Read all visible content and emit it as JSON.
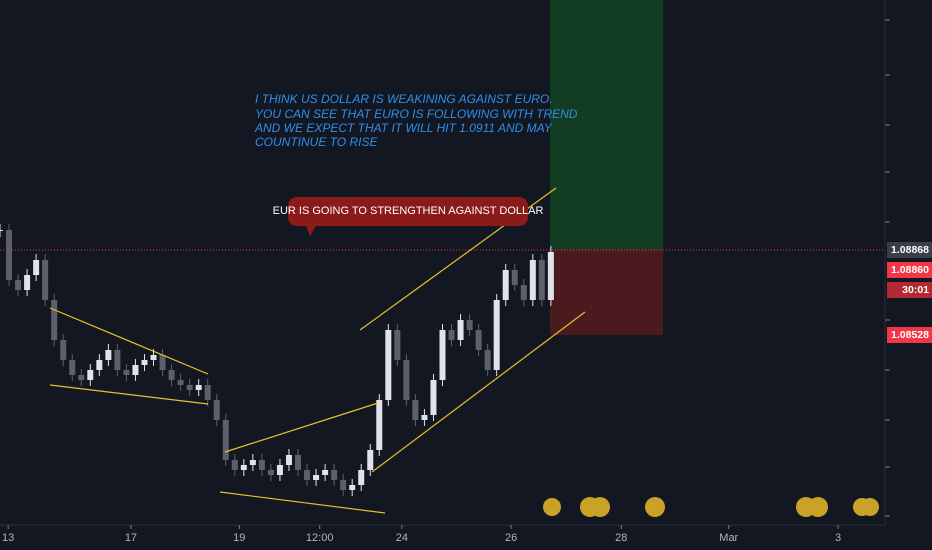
{
  "chart_data": {
    "type": "candlestick",
    "annotation": [
      "I THINK US DOLLAR IS WEAKINING AGAINST EURO.",
      "YOU CAN SEE THAT EURO IS FOLLOWING WITH TREND",
      "AND WE EXPECT THAT IT WILL HIT 1.0911 AND MAY",
      "COUNTINUE TO RISE"
    ],
    "callout": "EUR IS GOING TO STRENGTHEN AGAINST DOLLAR",
    "up_color": "#e0e3eb",
    "down_color": "#5d606b",
    "close": [
      1.08948,
      1.08748,
      1.08708,
      1.08768,
      1.08828,
      1.08668,
      1.08508,
      1.08428,
      1.08368,
      1.08348,
      1.08388,
      1.08428,
      1.08468,
      1.08388,
      1.08368,
      1.08408,
      1.08428,
      1.08448,
      1.08388,
      1.08348,
      1.08328,
      1.08308,
      1.08328,
      1.08268,
      1.08188,
      1.08028,
      1.07988,
      1.08008,
      1.08028,
      1.07988,
      1.07968,
      1.08008,
      1.08048,
      1.07988,
      1.07948,
      1.07968,
      1.07988,
      1.07948,
      1.07908,
      1.07928,
      1.07988,
      1.08068,
      1.08268,
      1.08548,
      1.08428,
      1.08268,
      1.08188,
      1.08208,
      1.08348,
      1.08548,
      1.08508,
      1.08588,
      1.08548,
      1.08468,
      1.08388,
      1.08668,
      1.08788,
      1.08728,
      1.08668,
      1.08828,
      1.08668,
      1.0886
    ],
    "xlim": [
      0,
      98
    ],
    "ylim": [
      1.07788,
      1.09868
    ],
    "xticks": [
      {
        "value": 0.9,
        "label": "13"
      },
      {
        "value": 14.5,
        "label": "17"
      },
      {
        "value": 26.5,
        "label": "19"
      },
      {
        "value": 35.4,
        "label": "12:00"
      },
      {
        "value": 44.5,
        "label": "24"
      },
      {
        "value": 56.6,
        "label": "26"
      },
      {
        "value": 68.8,
        "label": "28"
      },
      {
        "value": 80.7,
        "label": "Mar"
      },
      {
        "value": 92.8,
        "label": "3"
      }
    ],
    "position": {
      "entry": 1.08868,
      "stop": 1.08528,
      "target_color": "#133d23",
      "stop_color": "#4a1a1e"
    },
    "price_labels": [
      {
        "value": 1.08868,
        "label": "1.08868",
        "color": "#3a3e4a"
      },
      {
        "value": 1.0886,
        "label": "1.08860",
        "color": "#f23645"
      },
      {
        "value": 1.0886,
        "label": "30:01",
        "color": "#b22833"
      },
      {
        "value": 1.08528,
        "label": "1.08528",
        "color": "#f23645"
      }
    ]
  }
}
